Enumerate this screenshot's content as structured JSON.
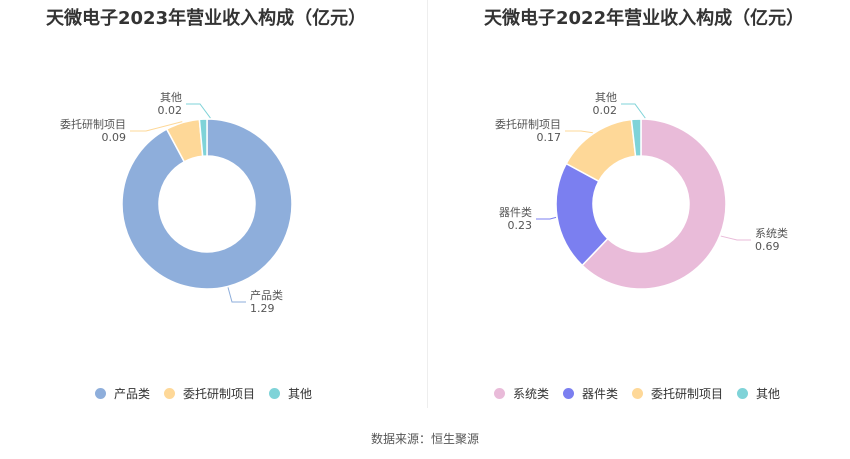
{
  "source_text": "数据来源：恒生聚源",
  "chart_data": [
    {
      "type": "pie",
      "title": "天微电子2023年营业收入构成（亿元）",
      "categories": [
        "产品类",
        "委托研制项目",
        "其他"
      ],
      "values": [
        1.29,
        0.09,
        0.02
      ],
      "value_labels": [
        "1.29",
        "0.09",
        "0.02"
      ],
      "colors": [
        "#8eaedb",
        "#fed898",
        "#7fd3d8"
      ],
      "legend": {
        "position": "bottom",
        "entries": [
          "产品类",
          "委托研制项目",
          "其他"
        ]
      }
    },
    {
      "type": "pie",
      "title": "天微电子2022年营业收入构成（亿元）",
      "categories": [
        "系统类",
        "器件类",
        "委托研制项目",
        "其他"
      ],
      "values": [
        0.69,
        0.23,
        0.17,
        0.02
      ],
      "value_labels": [
        "0.69",
        "0.23",
        "0.17",
        "0.02"
      ],
      "colors": [
        "#e9bbd9",
        "#7b7ff0",
        "#fed898",
        "#7fd3d8"
      ],
      "legend": {
        "position": "bottom",
        "entries": [
          "系统类",
          "器件类",
          "委托研制项目",
          "其他"
        ]
      }
    }
  ]
}
